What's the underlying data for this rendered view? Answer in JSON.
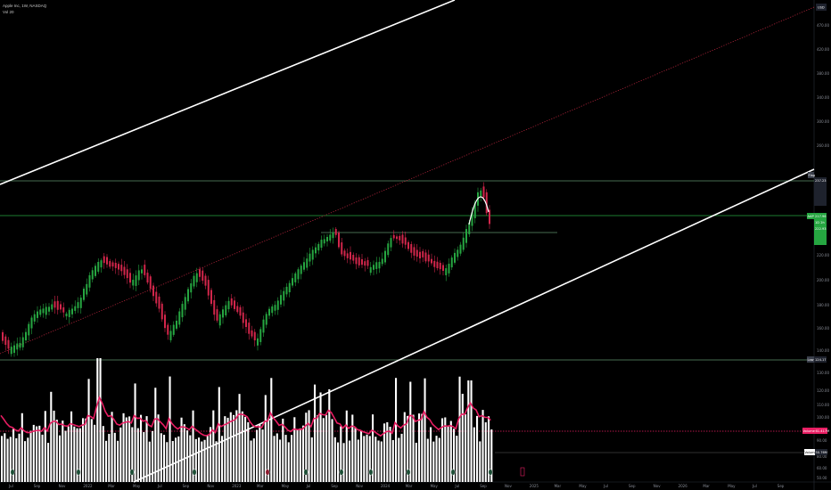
{
  "header": {
    "symbol_line": "Apple Inc, 1W, NASDAQ",
    "indicator_line": "Vol 20"
  },
  "price_axis": {
    "labels": [
      "470.00",
      "420.00",
      "380.00",
      "340.00",
      "300.00",
      "260.00",
      "220.00",
      "200.00",
      "180.00",
      "160.00",
      "140.00",
      "130.00",
      "120.00",
      "110.00",
      "100.00",
      "90.00",
      "80.00",
      "60.00",
      "50.00"
    ]
  },
  "time_axis": {
    "labels": [
      "Jul",
      "Sep",
      "Nov",
      "2022",
      "Mar",
      "May",
      "Jul",
      "Sep",
      "Nov",
      "2023",
      "Mar",
      "May",
      "Jul",
      "Sep",
      "Nov",
      "2024",
      "Mar",
      "May",
      "Jul",
      "Sep",
      "Nov",
      "2025",
      "Mar",
      "May",
      "Jul",
      "Sep",
      "Nov",
      "2026",
      "Mar",
      "May",
      "Jul",
      "Sep"
    ]
  },
  "tags": {
    "top_right": "USD",
    "upper_level_flag": "Flag",
    "upper_level_value": "237.23",
    "price_name": "AAPL",
    "price_value": "217.96",
    "price_sub1": "1D 2h",
    "price_sub2": "222.93",
    "lower_level_flag": "Low",
    "lower_level_value": "124.17",
    "volume_flag": "Volume SA",
    "volume_value": "61.417M",
    "volume_value2": "Volume",
    "volume_value3": "50.76M"
  },
  "colors": {
    "background": "#000000",
    "up": "#26a641",
    "down": "#d2264b",
    "volume_bar": "#ffffff",
    "volume_ma": "#e91e63",
    "channel_line": "#ffffff",
    "mid_dotted": "#b0243b",
    "level_line": "#5e8f6a",
    "price_tag": "#26a641"
  }
}
